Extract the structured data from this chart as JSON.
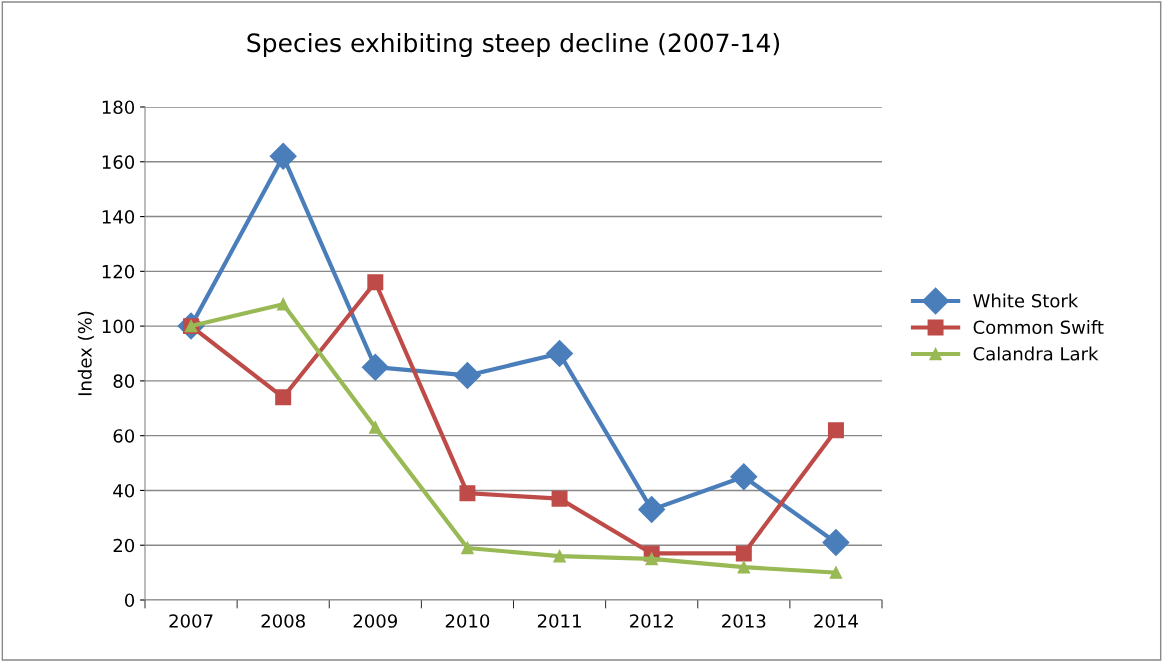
{
  "chart_data": {
    "type": "line",
    "title": "Species exhibiting steep decline (2007-14)",
    "ylabel": "Index (%)",
    "categories": [
      "2007",
      "2008",
      "2009",
      "2010",
      "2011",
      "2012",
      "2013",
      "2014"
    ],
    "series": [
      {
        "name": "White Stork",
        "color": "#4a7ebb",
        "marker": "diamond",
        "values": [
          100,
          162,
          85,
          82,
          90,
          33,
          45,
          21
        ]
      },
      {
        "name": "Common Swift",
        "color": "#be4b48",
        "marker": "square",
        "values": [
          100,
          74,
          116,
          39,
          37,
          17,
          17,
          62
        ]
      },
      {
        "name": "Calandra Lark",
        "color": "#98b954",
        "marker": "triangle",
        "values": [
          100,
          108,
          63,
          19,
          16,
          15,
          12,
          10
        ]
      }
    ],
    "ylim": [
      0,
      180
    ],
    "yticks": [
      0,
      20,
      40,
      60,
      80,
      100,
      120,
      140,
      160,
      180
    ],
    "grid": "y",
    "legend": "right",
    "line_style": "solid"
  }
}
